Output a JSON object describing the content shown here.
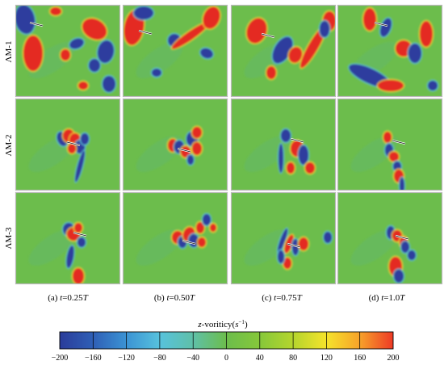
{
  "figure": {
    "rows": [
      {
        "label": "ΛM-1"
      },
      {
        "label": "ΛM-2"
      },
      {
        "label": "ΛM-3"
      }
    ],
    "columns": [
      {
        "prefix": "(a) ",
        "var": "t",
        "value": "=0.25",
        "unit": "T"
      },
      {
        "prefix": "(b) ",
        "var": "t",
        "value": "=0.50",
        "unit": "T"
      },
      {
        "prefix": "(c) ",
        "var": "t",
        "value": "=0.75",
        "unit": "T"
      },
      {
        "prefix": "(d) ",
        "var": "t",
        "value": "=1.0",
        "unit": "T"
      }
    ],
    "colorbar": {
      "title_prefix": "z",
      "title_mid": "-voriticy(",
      "title_unit": "s",
      "title_exp": "−1",
      "title_suffix": ")",
      "min": -200,
      "max": 200,
      "ticks": [
        "−200",
        "−160",
        "−120",
        "−80",
        "−40",
        "0",
        "40",
        "80",
        "120",
        "160",
        "200"
      ],
      "colors": [
        "#2a3c9a",
        "#2f5fb6",
        "#3b93d4",
        "#57c2dd",
        "#5fc0a8",
        "#6cbd4c",
        "#86c83a",
        "#b5d52d",
        "#f5e32b",
        "#f7a22a",
        "#ee3a26"
      ]
    },
    "colors": {
      "background": "#6cbd4c",
      "positive": "#e42a24",
      "negative": "#2f3e9e",
      "panel_border": "#b9b9b9"
    }
  }
}
